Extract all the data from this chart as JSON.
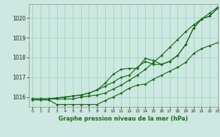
{
  "title": "Graphe pression niveau de la mer (hPa)",
  "background_color": "#cce8e0",
  "grid_color": "#99ccbb",
  "line_color": "#1a6b1a",
  "xlim": [
    -0.5,
    23
  ],
  "ylim": [
    1015.5,
    1020.7
  ],
  "yticks": [
    1016,
    1017,
    1018,
    1019,
    1020
  ],
  "xticks": [
    0,
    1,
    2,
    3,
    4,
    5,
    6,
    7,
    8,
    9,
    10,
    11,
    12,
    13,
    14,
    15,
    16,
    17,
    18,
    19,
    20,
    21,
    22,
    23
  ],
  "series": [
    [
      1015.9,
      1015.9,
      1015.9,
      1015.9,
      1015.9,
      1015.9,
      1016.0,
      1016.05,
      1016.1,
      1016.2,
      1016.4,
      1016.6,
      1016.85,
      1017.1,
      1017.4,
      1017.75,
      1018.1,
      1018.5,
      1018.9,
      1019.3,
      1019.65,
      1019.95,
      1020.25,
      1020.55
    ],
    [
      1015.85,
      1015.85,
      1015.85,
      1015.62,
      1015.62,
      1015.62,
      1015.62,
      1015.62,
      1015.62,
      1015.82,
      1016.0,
      1016.2,
      1016.45,
      1016.6,
      1016.65,
      1016.9,
      1017.1,
      1017.3,
      1017.5,
      1017.75,
      1018.2,
      1018.45,
      1018.6,
      1018.75
    ],
    [
      1015.9,
      1015.9,
      1015.9,
      1015.95,
      1016.0,
      1016.05,
      1016.1,
      1016.2,
      1016.35,
      1016.55,
      1016.75,
      1017.0,
      1017.1,
      1017.5,
      1017.8,
      1017.65,
      1017.65,
      1017.8,
      1018.1,
      1018.65,
      1019.5,
      1019.95,
      1020.1,
      1020.5
    ],
    [
      1015.9,
      1015.9,
      1015.9,
      1015.95,
      1016.0,
      1016.05,
      1016.1,
      1016.2,
      1016.35,
      1016.7,
      1017.15,
      1017.4,
      1017.45,
      1017.45,
      1017.95,
      1017.85,
      1017.65,
      1017.8,
      1018.1,
      1018.65,
      1019.5,
      1019.95,
      1020.1,
      1020.5
    ]
  ]
}
